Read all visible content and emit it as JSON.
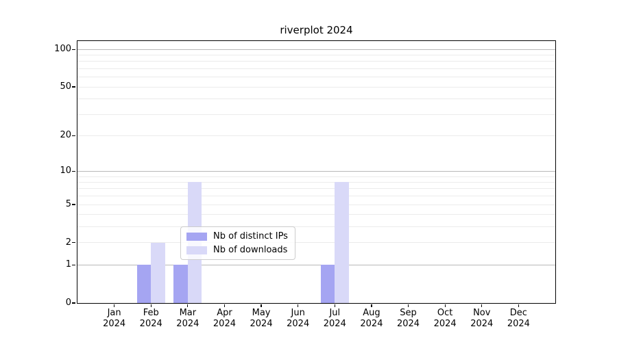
{
  "figure": {
    "title": "riverplot 2024"
  },
  "chart_data": {
    "type": "bar",
    "title": "riverplot 2024",
    "x_categories": [
      "Jan",
      "Feb",
      "Mar",
      "Apr",
      "May",
      "Jun",
      "Jul",
      "Aug",
      "Sep",
      "Oct",
      "Nov",
      "Dec"
    ],
    "x_year": "2024",
    "series": [
      {
        "name": "Nb of distinct IPs",
        "key": "distinct-ips",
        "color": "#a5a5f2",
        "values": [
          0,
          1,
          1,
          0,
          0,
          0,
          1,
          0,
          0,
          0,
          0,
          0
        ]
      },
      {
        "name": "Nb of downloads",
        "key": "downloads",
        "color": "#d9d9f8",
        "values": [
          0,
          2,
          8,
          0,
          0,
          0,
          8,
          0,
          0,
          0,
          0,
          0
        ]
      }
    ],
    "y_scale": "log1p",
    "y_ticks": [
      0,
      1,
      2,
      5,
      10,
      20,
      50,
      100
    ],
    "y_major_gridlines": [
      1,
      10,
      100
    ],
    "y_minor_gridlines": [
      2,
      3,
      4,
      5,
      6,
      7,
      8,
      9,
      20,
      30,
      40,
      50,
      60,
      70,
      80,
      90
    ],
    "ylim": [
      0,
      116
    ],
    "grid": true,
    "legend_position": "bottom-center-inside"
  },
  "colors": {
    "background": "#ffffff",
    "spine": "#000000",
    "major_grid": "#b8b8b8",
    "minor_grid": "#ebebeb",
    "distinct_ips_bar": "#a5a5f2",
    "downloads_bar": "#d9d9f8"
  }
}
